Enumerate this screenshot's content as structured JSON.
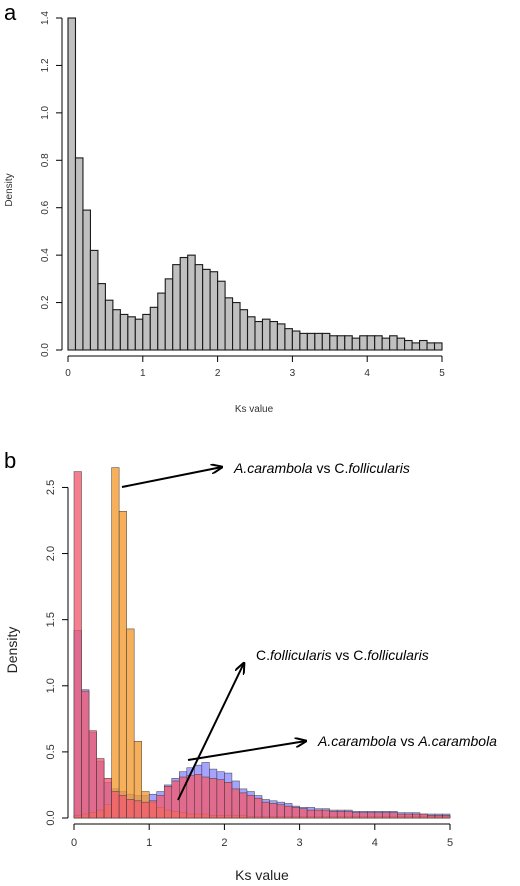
{
  "chart_data": [
    {
      "panel": "a",
      "type": "bar",
      "xlabel": "Ks value",
      "ylabel": "Density",
      "xlim": [
        0,
        5
      ],
      "ylim": [
        0,
        1.4
      ],
      "x_ticks": [
        "0",
        "1",
        "2",
        "3",
        "4",
        "5"
      ],
      "y_ticks": [
        "0.0",
        "0.2",
        "0.4",
        "0.6",
        "0.8",
        "1.0",
        "1.2",
        "1.4"
      ],
      "bin_width": 0.1,
      "bar_color": "#c0c0c0",
      "values": [
        1.4,
        0.81,
        0.59,
        0.42,
        0.28,
        0.21,
        0.17,
        0.15,
        0.14,
        0.13,
        0.15,
        0.18,
        0.24,
        0.3,
        0.36,
        0.39,
        0.4,
        0.36,
        0.34,
        0.33,
        0.29,
        0.22,
        0.2,
        0.17,
        0.14,
        0.12,
        0.13,
        0.12,
        0.11,
        0.09,
        0.08,
        0.07,
        0.07,
        0.07,
        0.07,
        0.06,
        0.06,
        0.06,
        0.05,
        0.06,
        0.06,
        0.06,
        0.05,
        0.06,
        0.05,
        0.04,
        0.03,
        0.04,
        0.03,
        0.03
      ]
    },
    {
      "panel": "b",
      "type": "bar",
      "xlabel": "Ks value",
      "ylabel": "Density",
      "xlim": [
        0,
        5
      ],
      "ylim": [
        0,
        2.7
      ],
      "x_ticks": [
        "0",
        "1",
        "2",
        "3",
        "4",
        "5"
      ],
      "y_ticks": [
        "0.0",
        "0.5",
        "1.0",
        "1.5",
        "2.0",
        "2.5"
      ],
      "bin_width": 0.1,
      "series": [
        {
          "color": "#8b8bff",
          "values": [
            1.42,
            0.97,
            0.65,
            0.43,
            0.27,
            0.22,
            0.2,
            0.18,
            0.17,
            0.17,
            0.18,
            0.2,
            0.25,
            0.3,
            0.35,
            0.38,
            0.4,
            0.42,
            0.37,
            0.35,
            0.34,
            0.28,
            0.22,
            0.2,
            0.17,
            0.14,
            0.13,
            0.12,
            0.11,
            0.09,
            0.08,
            0.08,
            0.07,
            0.07,
            0.06,
            0.06,
            0.06,
            0.05,
            0.05,
            0.05,
            0.05,
            0.05,
            0.05,
            0.04,
            0.04,
            0.04,
            0.03,
            0.03,
            0.03,
            0.03
          ]
        },
        {
          "color": "#f39a2e",
          "values": [
            0.02,
            0.03,
            0.04,
            0.06,
            0.1,
            2.65,
            2.32,
            1.43,
            0.58,
            0.2,
            0.12,
            0.08,
            0.06,
            0.05,
            0.04,
            0.03,
            0.03,
            0.03,
            0.02,
            0.02,
            0.02,
            0.02,
            0.02,
            0.01,
            0.01,
            0.01,
            0.01,
            0.01,
            0.01,
            0.01,
            0.01,
            0.01,
            0.01,
            0.01,
            0.01,
            0.01,
            0.01,
            0.01,
            0.01,
            0.01,
            0.01,
            0.01,
            0.01,
            0.01,
            0.01,
            0.01,
            0.01,
            0.01,
            0.01,
            0.01
          ]
        },
        {
          "color": "#f25b6e",
          "values": [
            2.62,
            0.96,
            0.66,
            0.45,
            0.3,
            0.2,
            0.17,
            0.14,
            0.13,
            0.12,
            0.13,
            0.17,
            0.24,
            0.28,
            0.31,
            0.32,
            0.33,
            0.31,
            0.3,
            0.29,
            0.27,
            0.22,
            0.19,
            0.17,
            0.15,
            0.12,
            0.11,
            0.1,
            0.09,
            0.08,
            0.07,
            0.06,
            0.06,
            0.06,
            0.05,
            0.05,
            0.05,
            0.04,
            0.04,
            0.04,
            0.04,
            0.04,
            0.04,
            0.03,
            0.03,
            0.03,
            0.03,
            0.02,
            0.02,
            0.02
          ]
        }
      ],
      "annotations": [
        {
          "parts": [
            {
              "text": "A.carambola",
              "italic": true
            },
            {
              "text": " vs C.",
              "italic": false
            },
            {
              "text": "follicularis",
              "italic": true
            }
          ]
        },
        {
          "parts": [
            {
              "text": "C.",
              "italic": false
            },
            {
              "text": "follicularis",
              "italic": true
            },
            {
              "text": " vs C.",
              "italic": false
            },
            {
              "text": "follicularis",
              "italic": true
            }
          ]
        },
        {
          "parts": [
            {
              "text": "A.carambola",
              "italic": true
            },
            {
              "text": " vs ",
              "italic": false
            },
            {
              "text": "A.carambola",
              "italic": true
            }
          ]
        }
      ]
    }
  ],
  "panels": {
    "a": "a",
    "b": "b"
  }
}
